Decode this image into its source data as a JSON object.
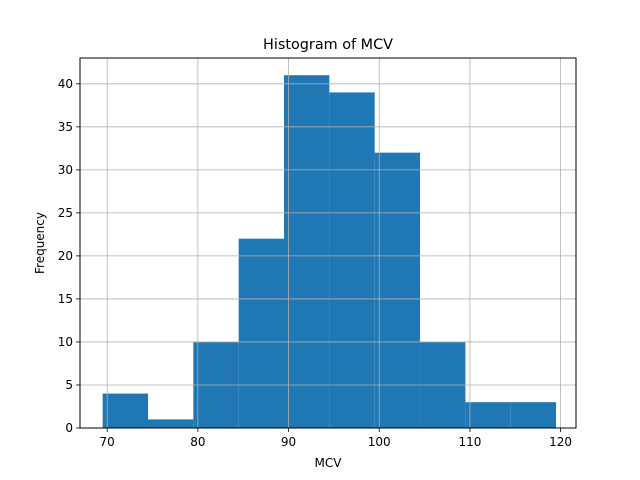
{
  "chart_data": {
    "type": "bar",
    "title": "Histogram of MCV",
    "xlabel": "MCV",
    "ylabel": "Frequency",
    "bins": [
      {
        "start": 69.5,
        "end": 74.5,
        "count": 4
      },
      {
        "start": 74.5,
        "end": 79.5,
        "count": 1
      },
      {
        "start": 79.5,
        "end": 84.5,
        "count": 10
      },
      {
        "start": 84.5,
        "end": 89.5,
        "count": 22
      },
      {
        "start": 89.5,
        "end": 94.5,
        "count": 41
      },
      {
        "start": 94.5,
        "end": 99.5,
        "count": 39
      },
      {
        "start": 99.5,
        "end": 104.5,
        "count": 32
      },
      {
        "start": 104.5,
        "end": 109.5,
        "count": 10
      },
      {
        "start": 109.5,
        "end": 114.5,
        "count": 3
      },
      {
        "start": 114.5,
        "end": 119.5,
        "count": 3
      }
    ],
    "xlim": [
      67,
      121.7
    ],
    "ylim": [
      0,
      43
    ],
    "x_ticks": [
      70,
      80,
      90,
      100,
      110,
      120
    ],
    "y_ticks": [
      0,
      5,
      10,
      15,
      20,
      25,
      30,
      35,
      40
    ],
    "grid": true,
    "bar_color": "#1f77b4",
    "grid_color": "#b0b0b0"
  }
}
